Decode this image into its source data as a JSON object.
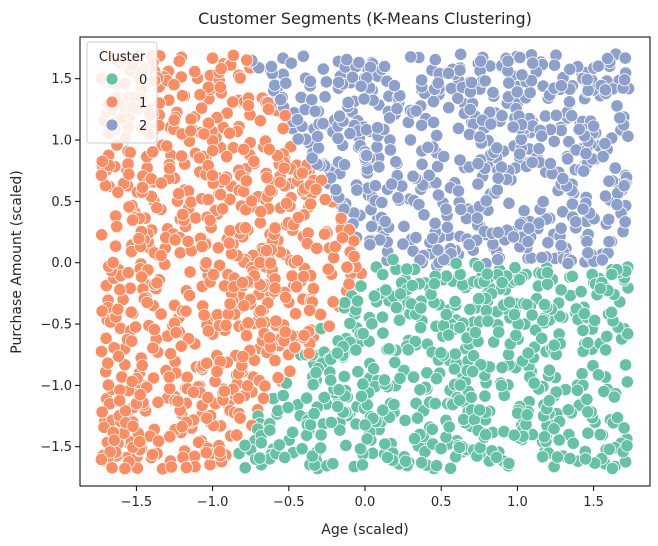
{
  "chart_data": {
    "type": "scatter",
    "title": "Customer Segments (K-Means Clustering)",
    "xlabel": "Age (scaled)",
    "ylabel": "Purchase Amount (scaled)",
    "xlim": [
      -1.87,
      1.87
    ],
    "ylim": [
      -1.82,
      1.84
    ],
    "xticks": [
      -1.5,
      -1.0,
      -0.5,
      0.0,
      0.5,
      1.0,
      1.5
    ],
    "xtick_labels": [
      "−1.5",
      "−1.0",
      "−0.5",
      "0.0",
      "0.5",
      "1.0",
      "1.5"
    ],
    "yticks": [
      -1.5,
      -1.0,
      -0.5,
      0.0,
      0.5,
      1.0,
      1.5
    ],
    "ytick_labels": [
      "−1.5",
      "−1.0",
      "−0.5",
      "0.0",
      "0.5",
      "1.0",
      "1.5"
    ],
    "grid": false,
    "legend": {
      "title": "Cluster",
      "placement": "top-left"
    },
    "point_region": {
      "x": [
        -1.73,
        1.73
      ],
      "y": [
        -1.68,
        1.7
      ]
    },
    "series": [
      {
        "name": "0",
        "color": "#66c2a5",
        "region": "lower-right",
        "approx_points": 560
      },
      {
        "name": "1",
        "color": "#fc8d62",
        "region": "left",
        "approx_points": 880
      },
      {
        "name": "2",
        "color": "#8da0cb",
        "region": "upper-right",
        "approx_points": 560
      }
    ],
    "boundaries": {
      "cluster1_edge": [
        [
          -0.8,
          1.7
        ],
        [
          0.05,
          0.0
        ],
        [
          -0.95,
          -1.68
        ]
      ],
      "cluster0_top": [
        [
          0.05,
          0.0
        ],
        [
          1.73,
          -0.02
        ]
      ]
    }
  }
}
